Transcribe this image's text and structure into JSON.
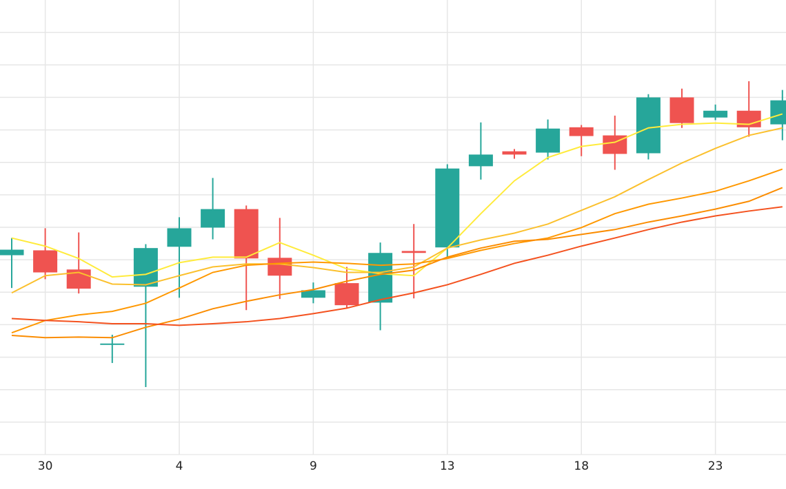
{
  "chart_data": {
    "type": "candlestick",
    "categories": [
      null,
      "30",
      null,
      null,
      null,
      "4",
      null,
      null,
      null,
      "9",
      null,
      null,
      null,
      "13",
      null,
      null,
      null,
      "18",
      null,
      null,
      null,
      "23",
      null,
      null
    ],
    "open": [
      6.14,
      6.29,
      5.7,
      3.38,
      5.17,
      6.4,
      6.99,
      7.56,
      6.06,
      4.83,
      5.28,
      4.68,
      6.27,
      6.38,
      8.88,
      9.34,
      9.3,
      10.08,
      9.83,
      9.28,
      11.0,
      10.38,
      10.59,
      10.17
    ],
    "high": [
      6.67,
      6.97,
      6.84,
      3.69,
      6.48,
      7.31,
      8.52,
      7.67,
      7.29,
      5.3,
      5.78,
      6.53,
      7.1,
      8.94,
      10.23,
      9.41,
      10.32,
      10.15,
      10.44,
      11.1,
      11.27,
      10.78,
      11.5,
      11.23
    ],
    "low": [
      5.13,
      5.4,
      4.96,
      2.82,
      2.08,
      4.83,
      6.63,
      4.45,
      4.79,
      4.66,
      4.53,
      3.83,
      4.81,
      6.08,
      8.47,
      9.11,
      9.09,
      9.19,
      8.77,
      9.09,
      10.06,
      10.3,
      9.79,
      9.68
    ],
    "close": [
      6.31,
      5.61,
      5.11,
      3.42,
      6.36,
      6.97,
      7.56,
      6.04,
      5.51,
      5.06,
      4.6,
      6.21,
      6.21,
      8.81,
      9.24,
      9.24,
      10.04,
      9.81,
      9.26,
      11.0,
      10.21,
      10.59,
      10.08,
      10.91
    ],
    "up_color": "#26a69a",
    "down_color": "#ef5350",
    "lines": [
      {
        "color": "#ffeb3b",
        "values": [
          6.67,
          6.42,
          6.04,
          5.47,
          5.55,
          5.91,
          6.08,
          6.08,
          6.53,
          6.14,
          5.72,
          5.57,
          5.51,
          6.36,
          7.42,
          8.43,
          9.15,
          9.49,
          9.62,
          10.06,
          10.17,
          10.21,
          10.17,
          10.49
        ]
      },
      {
        "color": "#fbc02d",
        "values": [
          4.98,
          5.51,
          5.61,
          5.25,
          5.23,
          5.51,
          5.78,
          5.87,
          5.87,
          5.76,
          5.61,
          5.61,
          5.78,
          6.36,
          6.61,
          6.82,
          7.1,
          7.52,
          7.94,
          8.47,
          8.98,
          9.43,
          9.83,
          10.06
        ]
      },
      {
        "color": "#ff9800",
        "values": [
          3.75,
          4.13,
          4.3,
          4.41,
          4.66,
          5.13,
          5.61,
          5.83,
          5.89,
          5.93,
          5.89,
          5.83,
          5.87,
          6.04,
          6.29,
          6.5,
          6.67,
          6.99,
          7.42,
          7.71,
          7.9,
          8.11,
          8.43,
          8.79
        ]
      },
      {
        "color": "#fb8c00",
        "values": [
          3.67,
          3.6,
          3.62,
          3.6,
          3.92,
          4.17,
          4.49,
          4.72,
          4.92,
          5.08,
          5.34,
          5.55,
          5.68,
          6.08,
          6.36,
          6.57,
          6.63,
          6.78,
          6.93,
          7.16,
          7.35,
          7.56,
          7.8,
          8.22
        ]
      },
      {
        "color": "#f4511e",
        "values": [
          4.19,
          4.13,
          4.09,
          4.03,
          4.03,
          3.98,
          4.03,
          4.09,
          4.19,
          4.34,
          4.51,
          4.77,
          4.98,
          5.23,
          5.55,
          5.89,
          6.14,
          6.42,
          6.67,
          6.93,
          7.16,
          7.35,
          7.5,
          7.63
        ]
      }
    ],
    "ylim": [
      0,
      14
    ],
    "yticks": [
      1,
      2,
      3,
      4,
      5,
      6,
      7,
      8,
      9,
      10,
      11,
      12,
      13
    ],
    "grid": true
  }
}
